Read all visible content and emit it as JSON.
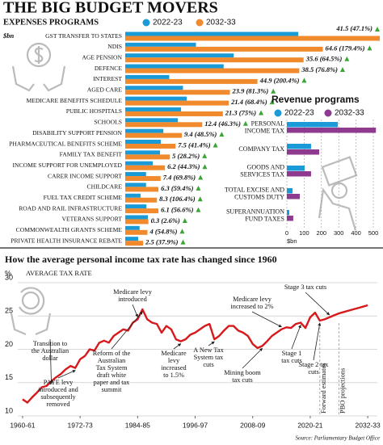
{
  "title": "THE BIG BUDGET MOVERS",
  "chart_data": [
    {
      "type": "hbar",
      "subtitle": "EXPENSES PROGRAMS",
      "unit": "$bn",
      "categories": [
        "GST TRANSFER TO STATES",
        "NDIS",
        "AGE PENSION",
        "DEFENCE",
        "INTEREST",
        "AGED CARE",
        "MEDICARE BENEFITS SCHEDULE",
        "PUBLIC HOSPITALS",
        "SCHOOLS",
        "DISABILITY SUPPORT PENSION",
        "PHARMACEUTICAL BENEFITS SCHEME",
        "FAMILY TAX BENEFIT",
        "INCOME SUPPORT FOR UNEMPLOYED",
        "CARER INCOME SUPPORT",
        "CHILDCARE",
        "FUEL TAX CREDIT SCHEME",
        "ROAD AND RAIL INFRASTRUCTURE",
        "VETERANS SUPPORT",
        "COMMONWEALTH GRANTS SCHEME",
        "PRIVATE HEALTH INSURANCE REBATE"
      ],
      "series": [
        {
          "name": "2022-23",
          "color": "#1a9ad6",
          "values": [
            88.1,
            36.0,
            55.2,
            50.1,
            22.4,
            29.4,
            31.3,
            28.4,
            26.8,
            19.4,
            18.1,
            17.7,
            14.0,
            10.6,
            10.6,
            7.8,
            10.8,
            11.5,
            7.3,
            6.6
          ]
        },
        {
          "name": "2032-33",
          "color": "#f08a2c",
          "values": [
            129.6,
            100.6,
            90.8,
            88.6,
            67.3,
            53.3,
            52.7,
            49.7,
            39.2,
            28.8,
            25.6,
            22.7,
            20.2,
            18.0,
            16.9,
            16.1,
            16.9,
            11.8,
            11.3,
            9.1
          ]
        }
      ],
      "change_labels": [
        "41.5 (47.1%)",
        "64.6 (179.4%)",
        "35.6 (64.5%)",
        "38.5 (76.8%)",
        "44.9 (200.4%)",
        "23.9 (81.3%)",
        "21.4 (68.4%)",
        "21.3 (75%)",
        "12.4 (46.3%)",
        "9.4 (48.5%)",
        "7.5 (41.4%)",
        "5 (28.2%)",
        "6.2 (44.3%)",
        "7.4 (69.8%)",
        "6.3 (59.4%)",
        "8.3 (106.4%)",
        "6.1 (56.6%)",
        "0.3 (2.6%)",
        "4 (54.8%)",
        "2.5 (37.9%)"
      ],
      "xlim": [
        0,
        130
      ]
    },
    {
      "type": "hbar",
      "title": "Revenue programs",
      "categories": [
        [
          "PERSONAL",
          "INCOME TAX"
        ],
        [
          "COMPANY TAX"
        ],
        [
          "GOODS AND",
          "SERVICES TAX"
        ],
        [
          "TOTAL EXCISE AND",
          "CUSTOMS DUTY"
        ],
        [
          "SUPERANNUATION",
          "FUND TAXES"
        ]
      ],
      "series": [
        {
          "name": "2022-23",
          "color": "#1a9ad6",
          "values": [
            295,
            140,
            103,
            33,
            14
          ]
        },
        {
          "name": "2032-33",
          "color": "#8e3a8f",
          "values": [
            515,
            187,
            140,
            75,
            37
          ]
        }
      ],
      "xlim": [
        0,
        500
      ],
      "xticks": [
        0,
        100,
        200,
        300,
        400,
        500
      ],
      "xlabel": "$bn",
      "grid": true
    },
    {
      "type": "line",
      "title": "How the average personal income tax rate has changed since 1960",
      "ylabel": "%",
      "subtitle": "AVERAGE TAX RATE",
      "color": "#d7191c",
      "x": [
        1960,
        1961,
        1962,
        1963,
        1964,
        1965,
        1966,
        1967,
        1968,
        1969,
        1970,
        1971,
        1972,
        1973,
        1974,
        1975,
        1976,
        1977,
        1978,
        1979,
        1980,
        1981,
        1982,
        1983,
        1984,
        1985,
        1986,
        1987,
        1988,
        1989,
        1990,
        1991,
        1992,
        1993,
        1994,
        1995,
        1996,
        1997,
        1998,
        1999,
        2000,
        2001,
        2002,
        2003,
        2004,
        2005,
        2006,
        2007,
        2008,
        2009,
        2010,
        2011,
        2012,
        2013,
        2014,
        2015,
        2016,
        2017,
        2018,
        2019,
        2020,
        2021,
        2022,
        2023,
        2024,
        2025,
        2026,
        2027,
        2028,
        2029,
        2030,
        2031,
        2032
      ],
      "values": [
        12.5,
        12.0,
        12.8,
        13.5,
        14.3,
        14.5,
        15.2,
        15.8,
        16.3,
        17.0,
        17.5,
        17.2,
        18.5,
        19.0,
        20.0,
        19.8,
        21.0,
        21.3,
        21.0,
        22.0,
        22.5,
        23.0,
        22.8,
        24.0,
        24.5,
        26.0,
        24.5,
        24.0,
        23.8,
        22.5,
        23.5,
        23.0,
        21.5,
        21.2,
        21.5,
        22.2,
        22.5,
        23.0,
        23.5,
        23.8,
        21.5,
        22.0,
        22.8,
        23.5,
        23.5,
        22.8,
        22.5,
        22.0,
        20.8,
        20.2,
        20.5,
        21.2,
        22.0,
        22.5,
        23.0,
        23.3,
        23.2,
        23.8,
        24.0,
        23.2,
        24.8,
        25.5,
        24.3,
        24.5,
        24.8,
        25.1,
        25.4,
        25.6,
        25.8,
        26.0,
        26.2,
        26.4,
        26.6
      ],
      "ylim": [
        10,
        30
      ],
      "yticks": [
        10,
        15,
        20,
        25,
        30
      ],
      "xlim": [
        1959,
        2034
      ],
      "xticks": [
        {
          "value": 1960,
          "label": "1960-61"
        },
        {
          "value": 1972,
          "label": "1972-73"
        },
        {
          "value": 1984,
          "label": "1984-85"
        },
        {
          "value": 1996,
          "label": "1996-97"
        },
        {
          "value": 2008,
          "label": "2008-09"
        },
        {
          "value": 2020,
          "label": "2020-21"
        },
        {
          "value": 2032,
          "label": "2032-33"
        }
      ],
      "grid": true,
      "annotations": [
        [
          "Transition to",
          "the Australian",
          "dollar"
        ],
        [
          "PAYE levy",
          "introduced and",
          "subsequently",
          "removed"
        ],
        [
          "Medicare levy",
          "introduced"
        ],
        [
          "Reform of the",
          "Australian",
          "Tax System",
          "draft white",
          "paper and tax",
          "summit"
        ],
        [
          "Medicare",
          "levy",
          "increased",
          "to 1.5%"
        ],
        [
          "A New Tax",
          "System tax",
          "cuts"
        ],
        [
          "Mining boom",
          "tax cuts"
        ],
        [
          "Medicare levy",
          "increased to 2%"
        ],
        [
          "Stage 3 tax cuts"
        ],
        [
          "Stage 1",
          "tax cuts"
        ],
        [
          "Stage 2 tax",
          "cuts"
        ]
      ],
      "period_labels": [
        "Forward estimates",
        "PBO projections"
      ],
      "source": "Source: Parliamentary Budget Office"
    }
  ]
}
